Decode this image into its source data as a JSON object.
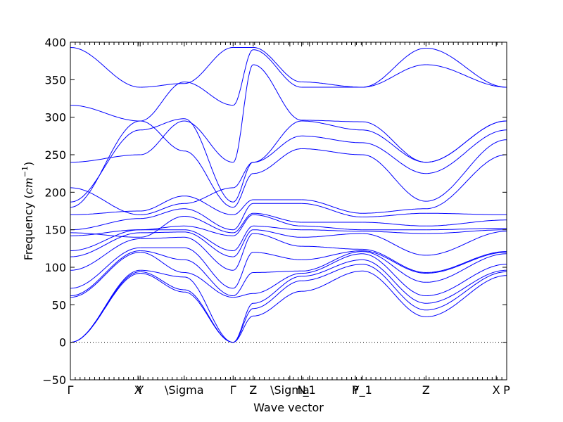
{
  "chart_data": {
    "type": "line",
    "xlabel": "Wave vector",
    "ylabel_text": "Frequency (",
    "ylabel_unit": "cm",
    "ylabel_exponent": "−1",
    "ylabel_close": ")",
    "ylim": [
      -50,
      400
    ],
    "xlim": [
      0,
      1
    ],
    "y_ticks": [
      -50,
      0,
      50,
      100,
      150,
      200,
      250,
      300,
      350,
      400
    ],
    "y_tick_labels": [
      "−50",
      "0",
      "50",
      "100",
      "150",
      "200",
      "250",
      "300",
      "350",
      "400"
    ],
    "x_ticks": [
      {
        "label": "Γ",
        "x": 0.0
      },
      {
        "label": "X",
        "x": 0.155
      },
      {
        "label": "Y",
        "x": 0.16
      },
      {
        "label": "\\Sigma",
        "x": 0.261
      },
      {
        "label": "Γ",
        "x": 0.373
      },
      {
        "label": "Z",
        "x": 0.419
      },
      {
        "label": "\\Sigma",
        "x": 0.503
      },
      {
        "label": "N",
        "x": 0.53
      },
      {
        "label": "_1",
        "x": 0.548
      },
      {
        "label": "P",
        "x": 0.653
      },
      {
        "label": "Y_1",
        "x": 0.669
      },
      {
        "label": "Z",
        "x": 0.815
      },
      {
        "label": "X",
        "x": 0.976
      },
      {
        "label": "P",
        "x": 1.0
      }
    ],
    "zero_line": true,
    "line_color": "#0000ff",
    "segments": [
      {
        "x0": 0.0,
        "x1": 0.16,
        "starts": [
          0,
          0,
          0,
          60,
          62,
          72,
          96,
          114,
          122,
          142,
          146,
          150,
          170,
          180,
          187,
          206,
          240,
          316,
          393
        ],
        "ends": [
          92,
          94,
          96,
          120,
          122,
          126,
          138,
          146,
          150,
          150,
          140,
          165,
          175,
          295,
          283,
          170,
          250,
          295,
          340
        ]
      },
      {
        "x0": 0.16,
        "x1": 0.261,
        "starts": [
          92,
          94,
          96,
          120,
          122,
          126,
          138,
          146,
          150,
          150,
          140,
          165,
          175,
          295,
          283,
          170,
          250,
          295,
          340
        ],
        "ends": [
          67,
          70,
          87,
          93,
          110,
          126,
          140,
          147,
          150,
          155,
          168,
          178,
          195,
          255,
          298,
          185,
          295,
          347,
          345
        ]
      },
      {
        "x0": 0.261,
        "x1": 0.373,
        "starts": [
          67,
          70,
          87,
          93,
          110,
          126,
          140,
          147,
          150,
          155,
          168,
          178,
          195,
          255,
          298,
          185,
          295,
          347,
          345
        ],
        "ends": [
          0,
          0,
          0,
          60,
          62,
          72,
          96,
          114,
          122,
          142,
          146,
          150,
          170,
          180,
          187,
          206,
          240,
          316,
          393
        ]
      },
      {
        "x0": 0.373,
        "x1": 0.419,
        "starts": [
          0,
          0,
          0,
          60,
          62,
          72,
          96,
          114,
          122,
          142,
          146,
          150,
          170,
          180,
          187,
          206,
          240,
          316,
          393
        ],
        "ends": [
          35,
          45,
          52,
          65,
          93,
          120,
          145,
          150,
          155,
          170,
          172,
          185,
          190,
          225,
          240,
          240,
          370,
          390,
          393
        ]
      },
      {
        "x0": 0.419,
        "x1": 0.53,
        "starts": [
          35,
          45,
          52,
          65,
          93,
          120,
          145,
          150,
          155,
          170,
          172,
          185,
          190,
          225,
          240,
          240,
          370,
          390,
          393
        ],
        "ends": [
          68,
          82,
          88,
          92,
          95,
          110,
          128,
          140,
          150,
          155,
          160,
          185,
          190,
          258,
          275,
          295,
          296,
          340,
          347
        ]
      },
      {
        "x0": 0.53,
        "x1": 0.669,
        "starts": [
          68,
          82,
          88,
          92,
          95,
          110,
          128,
          140,
          150,
          155,
          160,
          185,
          190,
          258,
          275,
          295,
          296,
          340,
          347
        ],
        "ends": [
          95,
          104,
          110,
          118,
          121,
          122,
          124,
          145,
          148,
          150,
          160,
          167,
          172,
          250,
          266,
          283,
          294,
          340,
          340
        ]
      },
      {
        "x0": 0.669,
        "x1": 0.815,
        "starts": [
          95,
          104,
          110,
          118,
          121,
          122,
          124,
          145,
          148,
          150,
          160,
          167,
          172,
          250,
          266,
          283,
          294,
          340,
          340
        ],
        "ends": [
          34,
          43,
          52,
          62,
          80,
          92,
          93,
          116,
          145,
          150,
          155,
          172,
          178,
          188,
          225,
          240,
          240,
          370,
          392
        ]
      },
      {
        "x0": 0.815,
        "x1": 1.0,
        "starts": [
          34,
          43,
          52,
          62,
          80,
          92,
          93,
          116,
          145,
          150,
          155,
          172,
          178,
          188,
          225,
          240,
          240,
          370,
          392
        ],
        "ends": [
          89,
          94,
          96,
          104,
          118,
          120,
          121,
          148,
          150,
          152,
          163,
          170,
          250,
          270,
          283,
          295,
          295,
          340,
          340
        ]
      }
    ]
  }
}
